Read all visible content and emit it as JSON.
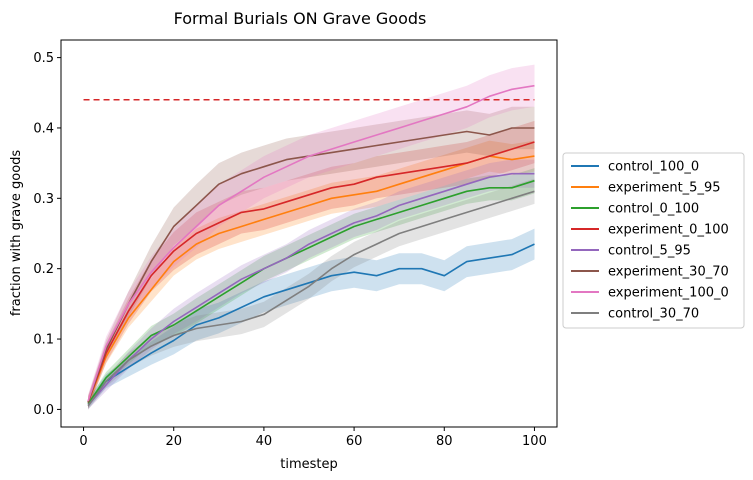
{
  "chart_data": {
    "type": "line",
    "title": "Formal Burials ON Grave Goods",
    "xlabel": "timestep",
    "ylabel": "fraction with grave goods",
    "xlim": [
      -5,
      105
    ],
    "ylim": [
      -0.025,
      0.525
    ],
    "xticks": [
      0,
      20,
      40,
      60,
      80,
      100
    ],
    "yticks": [
      0.0,
      0.1,
      0.2,
      0.3,
      0.4,
      0.5
    ],
    "xtick_labels": [
      "0",
      "20",
      "40",
      "60",
      "80",
      "100"
    ],
    "ytick_labels": [
      "0.0",
      "0.1",
      "0.2",
      "0.3",
      "0.4",
      "0.5"
    ],
    "grid": false,
    "legend_position": "outside-right",
    "reference_line": {
      "y": 0.44,
      "x_range": [
        0,
        100
      ],
      "style": "dashed",
      "color": "#d62728"
    },
    "x": [
      1,
      5,
      10,
      15,
      20,
      25,
      30,
      35,
      40,
      45,
      50,
      55,
      60,
      65,
      70,
      75,
      80,
      85,
      90,
      95,
      100
    ],
    "series": [
      {
        "name": "control_100_0",
        "color": "#1f77b4",
        "band": 0.022,
        "values": [
          0.008,
          0.04,
          0.06,
          0.08,
          0.098,
          0.12,
          0.13,
          0.145,
          0.16,
          0.17,
          0.18,
          0.19,
          0.195,
          0.19,
          0.2,
          0.2,
          0.19,
          0.21,
          0.215,
          0.22,
          0.235
        ]
      },
      {
        "name": "experiment_5_95",
        "color": "#ff7f0e",
        "band": 0.022,
        "values": [
          0.01,
          0.075,
          0.13,
          0.17,
          0.21,
          0.235,
          0.25,
          0.26,
          0.27,
          0.28,
          0.29,
          0.3,
          0.305,
          0.31,
          0.32,
          0.33,
          0.34,
          0.35,
          0.36,
          0.355,
          0.36
        ]
      },
      {
        "name": "control_0_100",
        "color": "#2ca02c",
        "band": 0.018,
        "values": [
          0.008,
          0.045,
          0.075,
          0.105,
          0.12,
          0.14,
          0.16,
          0.18,
          0.2,
          0.215,
          0.23,
          0.245,
          0.26,
          0.27,
          0.28,
          0.29,
          0.3,
          0.31,
          0.315,
          0.315,
          0.325
        ]
      },
      {
        "name": "experiment_0_100",
        "color": "#d62728",
        "band": 0.03,
        "values": [
          0.01,
          0.08,
          0.14,
          0.19,
          0.225,
          0.25,
          0.265,
          0.28,
          0.285,
          0.295,
          0.305,
          0.315,
          0.32,
          0.33,
          0.335,
          0.34,
          0.345,
          0.35,
          0.36,
          0.37,
          0.38
        ]
      },
      {
        "name": "control_5_95",
        "color": "#9467bd",
        "band": 0.02,
        "values": [
          0.006,
          0.035,
          0.07,
          0.1,
          0.125,
          0.145,
          0.165,
          0.185,
          0.2,
          0.215,
          0.235,
          0.25,
          0.265,
          0.275,
          0.29,
          0.3,
          0.31,
          0.32,
          0.33,
          0.335,
          0.335
        ]
      },
      {
        "name": "experiment_30_70",
        "color": "#8c564b",
        "band": 0.03,
        "values": [
          0.01,
          0.085,
          0.15,
          0.21,
          0.26,
          0.29,
          0.32,
          0.335,
          0.345,
          0.355,
          0.36,
          0.365,
          0.37,
          0.375,
          0.38,
          0.385,
          0.39,
          0.395,
          0.39,
          0.4,
          0.4
        ]
      },
      {
        "name": "experiment_100_0",
        "color": "#e377c2",
        "band": 0.03,
        "values": [
          0.012,
          0.09,
          0.15,
          0.195,
          0.23,
          0.26,
          0.29,
          0.31,
          0.33,
          0.345,
          0.36,
          0.37,
          0.38,
          0.39,
          0.4,
          0.41,
          0.42,
          0.43,
          0.445,
          0.455,
          0.46
        ]
      },
      {
        "name": "control_30_70",
        "color": "#7f7f7f",
        "band": 0.018,
        "values": [
          0.005,
          0.04,
          0.07,
          0.09,
          0.105,
          0.115,
          0.12,
          0.125,
          0.135,
          0.155,
          0.175,
          0.2,
          0.22,
          0.235,
          0.25,
          0.26,
          0.27,
          0.28,
          0.29,
          0.3,
          0.31
        ]
      }
    ]
  }
}
